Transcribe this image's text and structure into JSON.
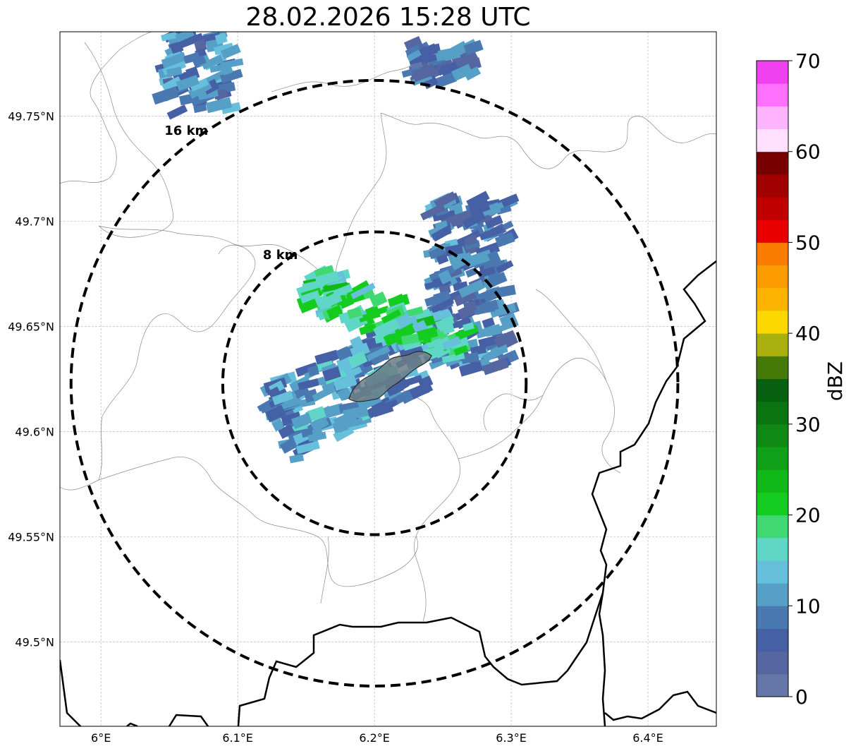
{
  "title": "28.02.2026 15:28 UTC",
  "map": {
    "lon_range": [
      5.97,
      6.45
    ],
    "lat_range": [
      49.46,
      49.79
    ],
    "x_ticks": [
      {
        "value": 6.0,
        "label": "6°E"
      },
      {
        "value": 6.1,
        "label": "6.1°E"
      },
      {
        "value": 6.2,
        "label": "6.2°E"
      },
      {
        "value": 6.3,
        "label": "6.3°E"
      },
      {
        "value": 6.4,
        "label": "6.4°E"
      }
    ],
    "y_ticks": [
      {
        "value": 49.75,
        "label": "49.75°N"
      },
      {
        "value": 49.7,
        "label": "49.7°N"
      },
      {
        "value": 49.65,
        "label": "49.65°N"
      },
      {
        "value": 49.6,
        "label": "49.6°N"
      },
      {
        "value": 49.55,
        "label": "49.55°N"
      },
      {
        "value": 49.5,
        "label": "49.5°N"
      }
    ],
    "grid": true,
    "center": {
      "lon": 6.2,
      "lat": 49.623
    },
    "range_rings": [
      {
        "radius_km": 8,
        "label": "8 km"
      },
      {
        "radius_km": 16,
        "label": "16 km"
      }
    ]
  },
  "colorbar": {
    "label": "dBZ",
    "min": 0,
    "max": 70,
    "step": 2.5,
    "tick_values": [
      0,
      10,
      20,
      30,
      40,
      50,
      60,
      70
    ],
    "tick_labels": [
      "0",
      "10",
      "20",
      "30",
      "40",
      "50",
      "60",
      "70"
    ],
    "colors": [
      "#6577a8",
      "#5566a0",
      "#4660a6",
      "#4a78b0",
      "#56a0c8",
      "#66c0dc",
      "#60d6c6",
      "#40d870",
      "#14cc20",
      "#10b818",
      "#10a018",
      "#0e8a14",
      "#0a7410",
      "#066010",
      "#467a08",
      "#aab010",
      "#fcd800",
      "#fcb400",
      "#fc9c00",
      "#fc7c00",
      "#e80000",
      "#c00000",
      "#a00000",
      "#780000",
      "#ffe0ff",
      "#ffb4ff",
      "#ff70ff",
      "#f040f0"
    ]
  },
  "radar_echoes": [
    {
      "lon": 6.18,
      "lat": 49.62,
      "dbz": 10
    },
    {
      "lon": 6.27,
      "lat": 49.67,
      "dbz": 8
    },
    {
      "lon": 6.21,
      "lat": 49.655,
      "dbz": 18
    },
    {
      "lon": 6.25,
      "lat": 49.775,
      "dbz": 7
    },
    {
      "lon": 6.07,
      "lat": 49.77,
      "dbz": 9
    }
  ]
}
